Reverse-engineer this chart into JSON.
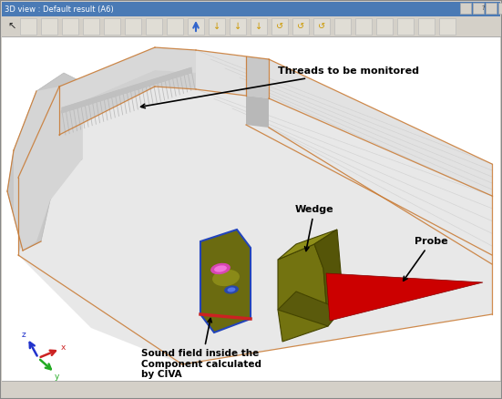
{
  "title": "3D view : Default result (A6)",
  "bg_color": "#d4d0c8",
  "window_bg": "#ffffff",
  "toolbar_bg": "#d4d0c8",
  "annotation_threads": "Threads to be monitored",
  "annotation_wedge": "Wedge",
  "annotation_probe": "Probe",
  "annotation_sound": "Sound field inside the\nComponent calculated\nby CIVA",
  "figsize": [
    5.51,
    4.38
  ],
  "dpi": 100,
  "titlebar_color": "#4a7ab5",
  "content_bg": "#ffffff",
  "pipe_face_color": "#e8e8e8",
  "pipe_top_color": "#d8d8d8",
  "pipe_left_color": "#d0d0d0",
  "thread_color": "#c8c8c8",
  "orange_outline": "#c87830",
  "wedge_front": "#6b6b10",
  "wedge_top": "#8a8a1a",
  "wedge_right": "#505008",
  "probe_color": "#cc0000",
  "sf_bg": "#6b6b10",
  "sf_border_blue": "#2244bb",
  "sf_border_red": "#cc2222"
}
